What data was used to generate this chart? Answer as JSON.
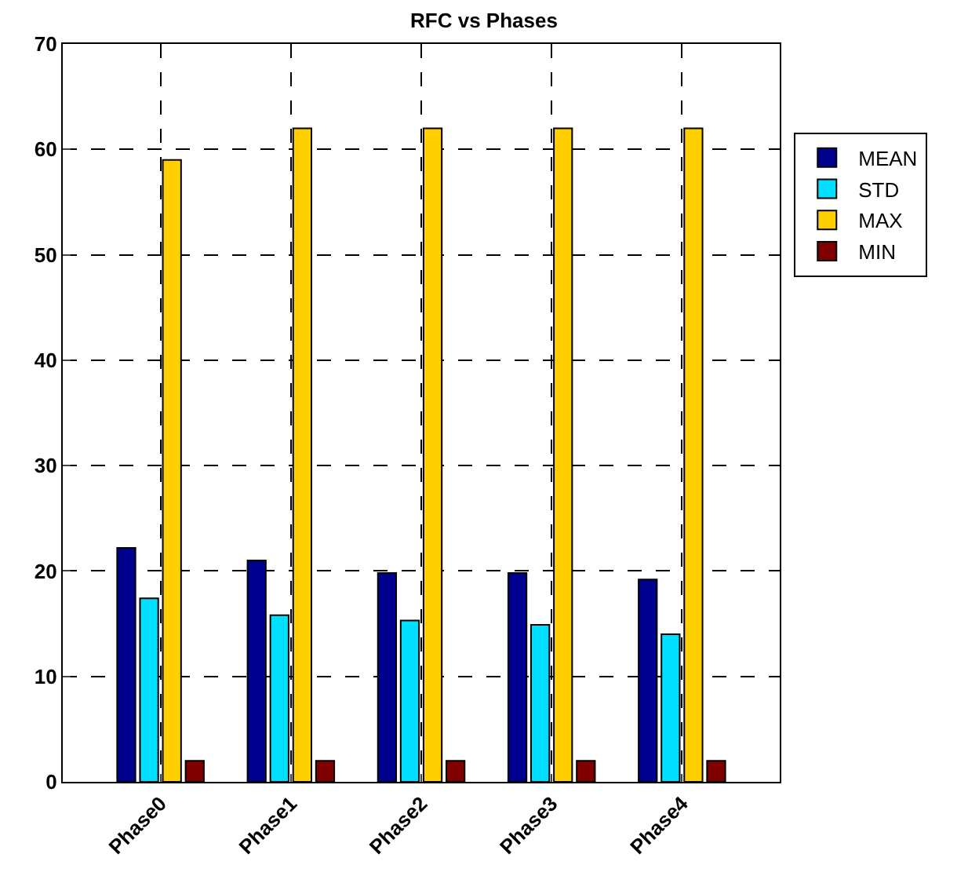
{
  "chart_data": {
    "type": "bar",
    "title": "RFC vs Phases",
    "categories": [
      "Phase0",
      "Phase1",
      "Phase2",
      "Phase3",
      "Phase4"
    ],
    "series": [
      {
        "name": "MEAN",
        "color": "#00008f",
        "values": [
          22.2,
          21.0,
          19.8,
          19.8,
          19.2
        ]
      },
      {
        "name": "STD",
        "color": "#00dfff",
        "values": [
          17.4,
          15.8,
          15.3,
          14.9,
          14.0
        ]
      },
      {
        "name": "MAX",
        "color": "#ffcf00",
        "values": [
          59,
          62,
          62,
          62,
          62
        ]
      },
      {
        "name": "MIN",
        "color": "#800000",
        "values": [
          2,
          2,
          2,
          2,
          2
        ]
      }
    ],
    "ylim": [
      0,
      70
    ],
    "yticks": [
      0,
      10,
      20,
      30,
      40,
      50,
      60,
      70
    ],
    "grid": true,
    "legend": "top right"
  }
}
